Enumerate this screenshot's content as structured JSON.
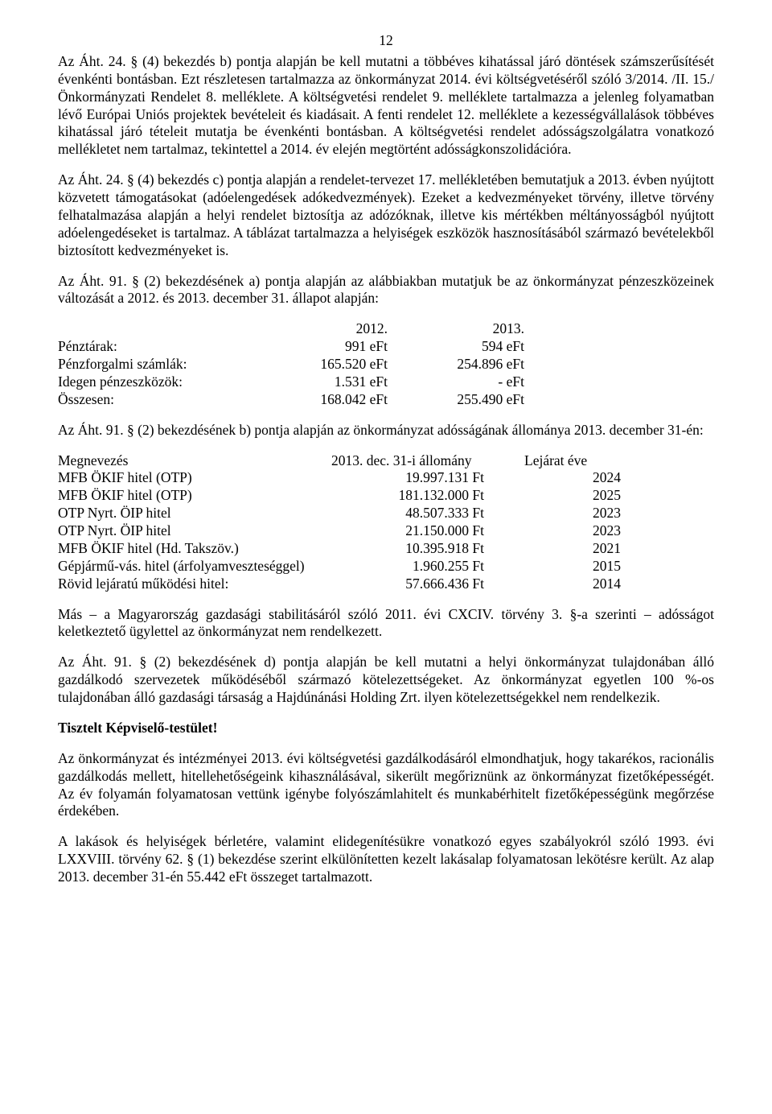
{
  "page_number": "12",
  "para1": "Az Áht. 24. § (4) bekezdés b) pontja alapján be kell  mutatni  a  többéves  kihatással  járó  döntések számszerűsítését évenkénti bontásban. Ezt részletesen tartalmazza az önkormányzat 2014. évi költségvetéséről szóló 3/2014. /II. 15./ Önkormányzati Rendelet 8. melléklete. A költségvetési rendelet 9. melléklete tartalmazza a jelenleg folyamatban lévő Európai Uniós projektek bevételeit és kiadásait. A fenti rendelet 12. melléklete a kezességvállalások többéves kihatással járó tételeit mutatja be évenkénti bontásban. A költségvetési rendelet adósságszolgálatra vonatkozó mellékletet nem tartalmaz, tekintettel a 2014. év elején megtörtént adósságkonszolidációra.",
  "para2": "Az Áht. 24. § (4) bekezdés c) pontja alapján a rendelet-tervezet 17. mellékletében bemutatjuk a 2013. évben nyújtott közvetett támogatásokat (adóelengedések adókedvezmények). Ezeket a kedvezményeket törvény, illetve törvény felhatalmazása alapján a helyi rendelet biztosítja az adózóknak, illetve kis mértékben méltányosságból nyújtott adóelengedéseket is tartalmaz. A táblázat tartalmazza a helyiségek eszközök hasznosításából származó bevételekből biztosított kedvezményeket is.",
  "para3": "Az Áht. 91. § (2) bekezdésének a) pontja alapján az alábbiakban mutatjuk be az önkormányzat pénzeszközeinek változását a 2012. és 2013. december 31. állapot alapján:",
  "table1": {
    "head": [
      "",
      "2012.",
      "2013."
    ],
    "rows": [
      [
        "Pénztárak:",
        "991 eFt",
        "594 eFt"
      ],
      [
        "Pénzforgalmi számlák:",
        "165.520 eFt",
        "254.896 eFt"
      ],
      [
        "Idegen pénzeszközök:",
        "1.531 eFt",
        "- eFt"
      ],
      [
        "Összesen:",
        "168.042 eFt",
        "255.490 eFt"
      ]
    ]
  },
  "para4": "Az Áht. 91. § (2) bekezdésének b) pontja alapján az önkormányzat adósságának állománya 2013. december 31-én:",
  "table2": {
    "head": [
      "Megnevezés",
      "2013. dec. 31-i állomány",
      "Lejárat éve"
    ],
    "rows": [
      [
        "MFB ÖKIF hitel (OTP)",
        "19.997.131 Ft",
        "2024"
      ],
      [
        "MFB ÖKIF hitel (OTP)",
        "181.132.000 Ft",
        "2025"
      ],
      [
        "OTP Nyrt. ÖIP hitel",
        "48.507.333 Ft",
        "2023"
      ],
      [
        "OTP Nyrt. ÖIP hitel",
        "21.150.000 Ft",
        "2023"
      ],
      [
        "MFB ÖKIF hitel (Hd. Takszöv.)",
        "10.395.918 Ft",
        "2021"
      ],
      [
        "Gépjármű-vás. hitel (árfolyamveszteséggel)",
        "1.960.255 Ft",
        "2015"
      ],
      [
        "Rövid lejáratú működési hitel:",
        "57.666.436 Ft",
        "2014"
      ]
    ]
  },
  "para5": "Más – a Magyarország gazdasági stabilitásáról szóló 2011. évi CXCIV. törvény 3. §-a szerinti – adósságot keletkeztető ügylettel az önkormányzat nem rendelkezett.",
  "para6": "Az Áht. 91. § (2) bekezdésének d) pontja alapján be kell mutatni a helyi önkormányzat tulajdonában álló gazdálkodó szervezetek működéséből származó kötelezettségeket. Az önkormányzat egyetlen 100 %-os tulajdonában álló gazdasági társaság a Hajdúnánási Holding Zrt. ilyen kötelezettségekkel nem rendelkezik.",
  "heading": "Tisztelt Képviselő-testület!",
  "para7": "Az önkormányzat és intézményei 2013. évi költségvetési gazdálkodásáról elmondhatjuk, hogy takarékos, racionális gazdálkodás mellett, hitellehetőségeink kihasználásával, sikerült megőriznünk az önkormányzat fizetőképességét. Az év folyamán folyamatosan vettünk igénybe folyószámlahitelt és munkabérhitelt fizetőképességünk megőrzése érdekében.",
  "para8": "A lakások és helyiségek bérletére, valamint elidegenítésükre vonatkozó egyes szabályokról szóló 1993. évi LXXVIII. törvény 62. § (1) bekezdése szerint elkülönítetten kezelt lakásalap folyamatosan lekötésre került. Az alap 2013. december 31-én 55.442 eFt összeget tartalmazott."
}
